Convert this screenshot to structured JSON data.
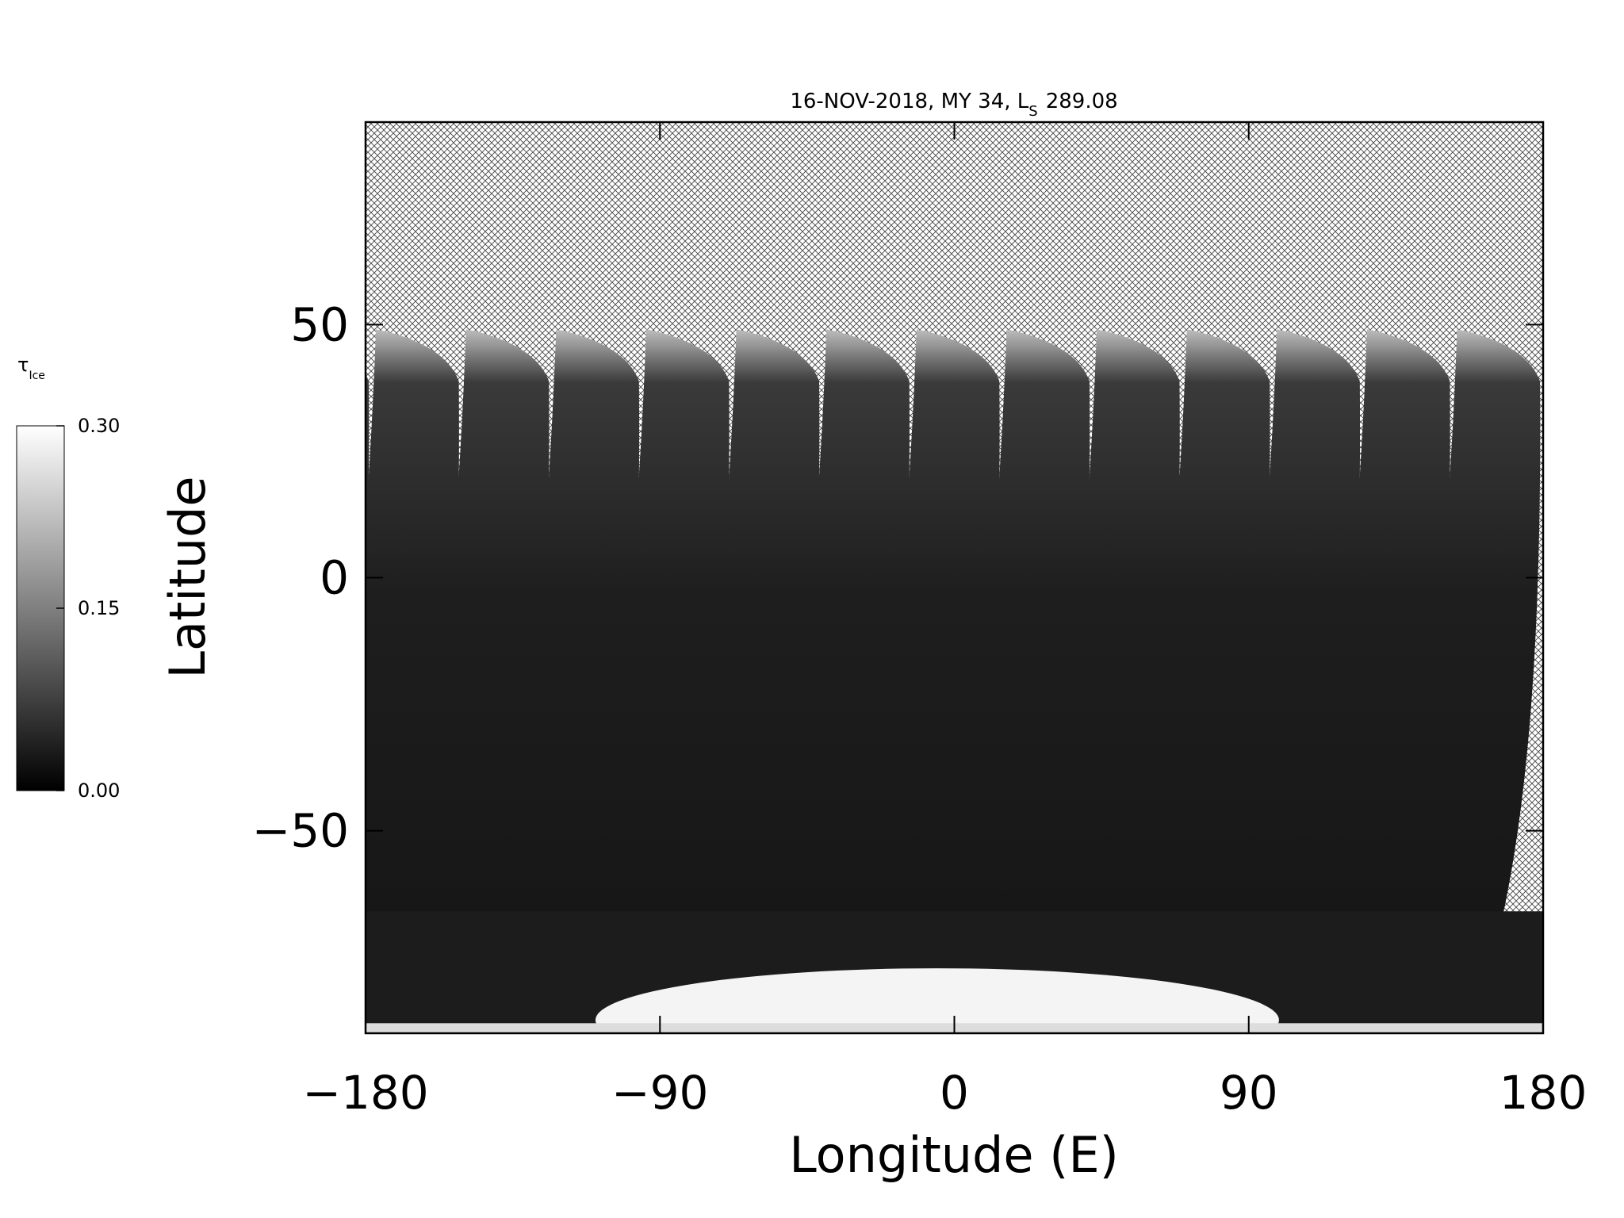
{
  "chart_data": {
    "type": "map",
    "title": "16-NOV-2018, MY 34,  L",
    "title_subscript": "S",
    "title_value": 289.08,
    "x_label": "Longitude (E)",
    "y_label": "Latitude",
    "xlim": [
      -180,
      180
    ],
    "xticks": [
      {
        "value": -180,
        "label": "−180"
      },
      {
        "value": -90,
        "label": "−90"
      },
      0,
      90,
      180
    ],
    "ylim": [
      -90,
      90
    ],
    "yticks": [
      {
        "value": -50,
        "label": "−50"
      },
      0,
      50
    ],
    "colorbar_label": "τ",
    "colorbar_label_subscript": "Ice",
    "colorbar_lim": [
      0,
      0.3
    ],
    "colorbar_ticks": [
      {
        "value": 0,
        "label": "0.00"
      },
      {
        "value": 0.15,
        "label": "0.15"
      },
      {
        "value": 0.3,
        "label": "0.30"
      }
    ]
  }
}
